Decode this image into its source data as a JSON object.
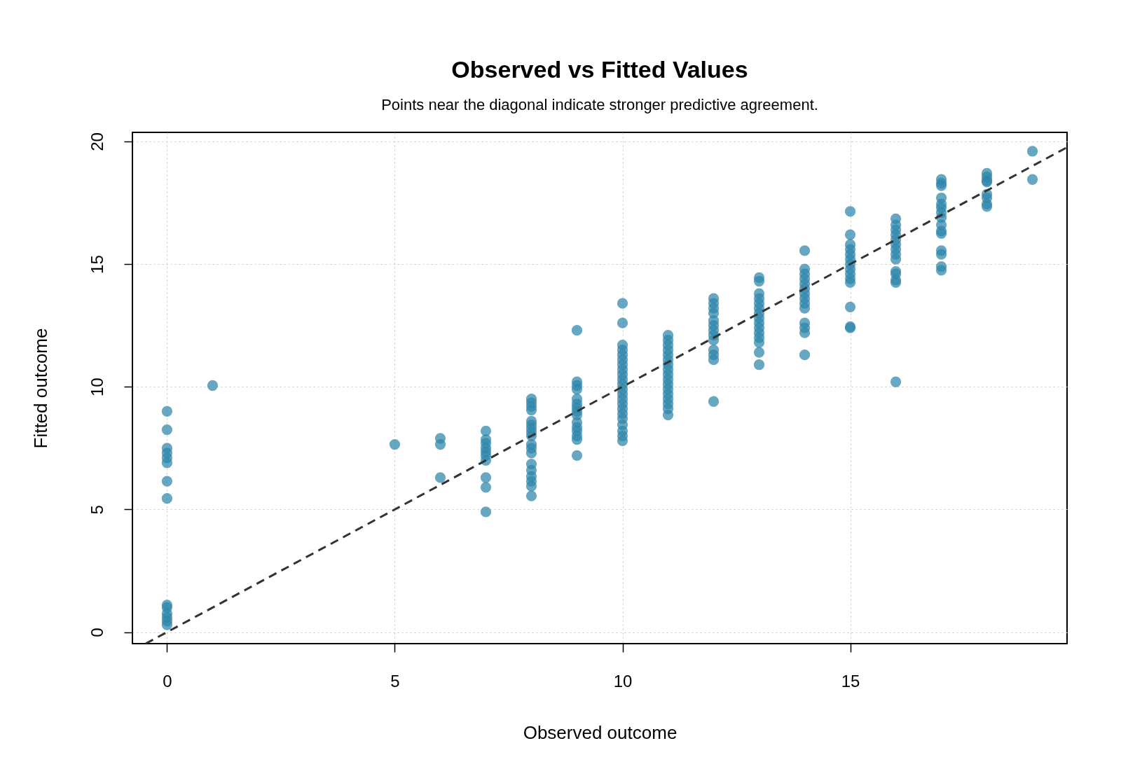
{
  "chart_data": {
    "type": "scatter",
    "title": "Observed vs Fitted Values",
    "subtitle": "Points near the diagonal indicate stronger predictive agreement.",
    "xlabel": "Observed outcome",
    "ylabel": "Fitted outcome",
    "xlim": [
      -0.76,
      19.76
    ],
    "ylim": [
      -0.47,
      20.37
    ],
    "xticks": [
      0,
      5,
      10,
      15
    ],
    "yticks": [
      0,
      5,
      10,
      15,
      20
    ],
    "grid": true,
    "marker": "circle",
    "series": [
      {
        "type": "scatter",
        "color": "#2e86ab",
        "x": [
          0,
          0,
          0,
          0,
          0,
          0,
          0,
          0,
          0,
          0,
          0,
          0,
          0,
          0,
          1,
          5,
          6,
          6,
          6,
          7,
          7,
          7,
          7,
          7,
          7,
          7,
          7,
          7,
          7,
          8,
          8,
          8,
          8,
          8,
          8,
          8,
          8,
          8,
          8,
          8,
          8,
          8,
          8,
          8,
          8,
          8,
          8,
          9,
          9,
          9,
          9,
          9,
          9,
          9,
          9,
          9,
          9,
          9,
          9,
          9,
          9,
          9,
          10,
          10,
          10,
          10,
          10,
          10,
          10,
          10,
          10,
          10,
          10,
          10,
          10,
          10,
          10,
          10,
          10,
          10,
          10,
          10,
          10,
          10,
          11,
          11,
          11,
          11,
          11,
          11,
          11,
          11,
          11,
          11,
          11,
          11,
          11,
          11,
          11,
          11,
          11,
          12,
          12,
          12,
          12,
          12,
          12,
          12,
          12,
          12,
          12,
          12,
          12,
          12,
          13,
          13,
          13,
          13,
          13,
          13,
          13,
          13,
          13,
          13,
          13,
          13,
          13,
          13,
          13,
          14,
          14,
          14,
          14,
          14,
          14,
          14,
          14,
          14,
          14,
          14,
          14,
          14,
          14,
          15,
          15,
          15,
          15,
          15,
          15,
          15,
          15,
          15,
          15,
          15,
          15,
          15,
          15,
          16,
          16,
          16,
          16,
          16,
          16,
          16,
          16,
          16,
          16,
          16,
          16,
          16,
          16,
          17,
          17,
          17,
          17,
          17,
          17,
          17,
          17,
          17,
          17,
          17,
          17,
          17,
          17,
          17,
          18,
          18,
          18,
          18,
          18,
          18,
          18,
          18,
          19,
          19
        ],
        "values": [
          9.0,
          8.25,
          7.5,
          7.3,
          7.1,
          6.9,
          6.15,
          5.45,
          1.1,
          1.0,
          0.75,
          0.6,
          0.45,
          0.3,
          10.05,
          7.65,
          7.9,
          7.65,
          6.3,
          8.2,
          7.85,
          7.7,
          7.5,
          7.35,
          7.2,
          7.0,
          6.3,
          5.9,
          4.9,
          9.5,
          9.35,
          9.2,
          9.05,
          8.6,
          8.45,
          8.3,
          8.15,
          8.0,
          7.65,
          7.5,
          7.3,
          6.85,
          6.6,
          6.35,
          6.15,
          5.95,
          5.55,
          12.3,
          10.2,
          10.05,
          9.9,
          9.5,
          9.3,
          9.15,
          9.0,
          8.85,
          8.55,
          8.35,
          8.2,
          8.0,
          7.85,
          7.2,
          13.4,
          12.6,
          11.7,
          11.5,
          11.3,
          11.1,
          10.9,
          10.7,
          10.5,
          10.3,
          10.1,
          9.9,
          9.7,
          9.5,
          9.3,
          9.1,
          8.9,
          8.7,
          8.45,
          8.2,
          8.0,
          7.8,
          12.1,
          11.9,
          11.7,
          11.5,
          11.3,
          11.1,
          10.9,
          10.7,
          10.5,
          10.3,
          10.1,
          9.9,
          9.7,
          9.5,
          9.3,
          9.1,
          8.85,
          13.6,
          13.4,
          13.2,
          13.0,
          12.7,
          12.5,
          12.3,
          12.1,
          11.9,
          11.5,
          11.3,
          11.1,
          9.4,
          14.45,
          14.3,
          13.8,
          13.6,
          13.4,
          13.2,
          13.0,
          12.8,
          12.6,
          12.4,
          12.2,
          12.0,
          11.8,
          11.4,
          10.9,
          15.55,
          14.8,
          14.6,
          14.4,
          14.2,
          14.0,
          13.8,
          13.6,
          13.4,
          13.2,
          12.6,
          12.4,
          12.2,
          11.3,
          17.15,
          16.2,
          15.8,
          15.6,
          15.4,
          15.2,
          15.0,
          14.8,
          14.6,
          14.4,
          14.25,
          13.25,
          12.45,
          12.4,
          16.85,
          16.6,
          16.4,
          16.2,
          16.0,
          15.8,
          15.6,
          15.4,
          15.2,
          14.7,
          14.6,
          14.35,
          14.25,
          10.2,
          18.45,
          18.3,
          18.2,
          17.7,
          17.45,
          17.3,
          17.1,
          16.9,
          16.6,
          16.35,
          16.25,
          15.55,
          15.4,
          14.9,
          14.75,
          18.7,
          18.55,
          18.4,
          18.35,
          17.85,
          17.7,
          17.45,
          17.35,
          19.6,
          18.45
        ]
      },
      {
        "type": "line",
        "color": "#333333",
        "line_style": "dashed",
        "marker": "none",
        "x": [
          -0.47,
          19.76
        ],
        "values": [
          -0.47,
          19.76
        ]
      }
    ]
  }
}
